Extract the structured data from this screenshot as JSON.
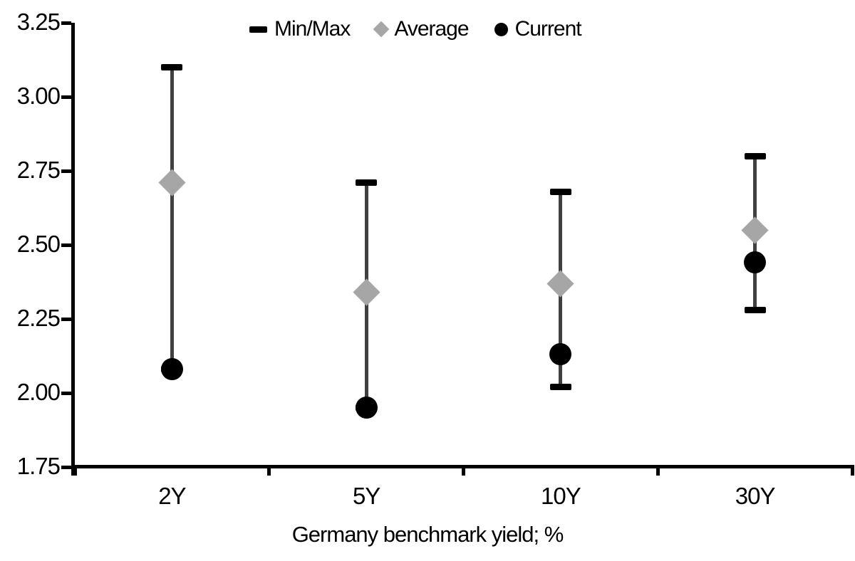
{
  "chart_data": {
    "type": "scatter",
    "subtype": "min-max-range",
    "title": "",
    "xlabel": "Germany benchmark yield; %",
    "ylabel": "",
    "ylim": [
      1.75,
      3.25
    ],
    "ytick_step": 0.25,
    "yticks": [
      "3.25",
      "3.00",
      "2.75",
      "2.50",
      "2.25",
      "2.00",
      "1.75"
    ],
    "categories": [
      "2Y",
      "5Y",
      "10Y",
      "30Y"
    ],
    "series": [
      {
        "name": "Min/Max",
        "type": "range",
        "marker": "dash",
        "min": [
          2.08,
          1.95,
          2.02,
          2.28
        ],
        "max": [
          3.1,
          2.71,
          2.68,
          2.8
        ]
      },
      {
        "name": "Average",
        "type": "point",
        "marker": "diamond",
        "values": [
          2.71,
          2.34,
          2.37,
          2.55
        ]
      },
      {
        "name": "Current",
        "type": "point",
        "marker": "circle",
        "values": [
          2.08,
          1.95,
          2.13,
          2.44
        ]
      }
    ],
    "legend_position": "top-center",
    "grid": false
  },
  "colors": {
    "axis": "#000000",
    "range_cap": "#000000",
    "range_line": "#404040",
    "average_marker": "#a6a6a6",
    "current_marker": "#000000",
    "background": "#ffffff"
  }
}
